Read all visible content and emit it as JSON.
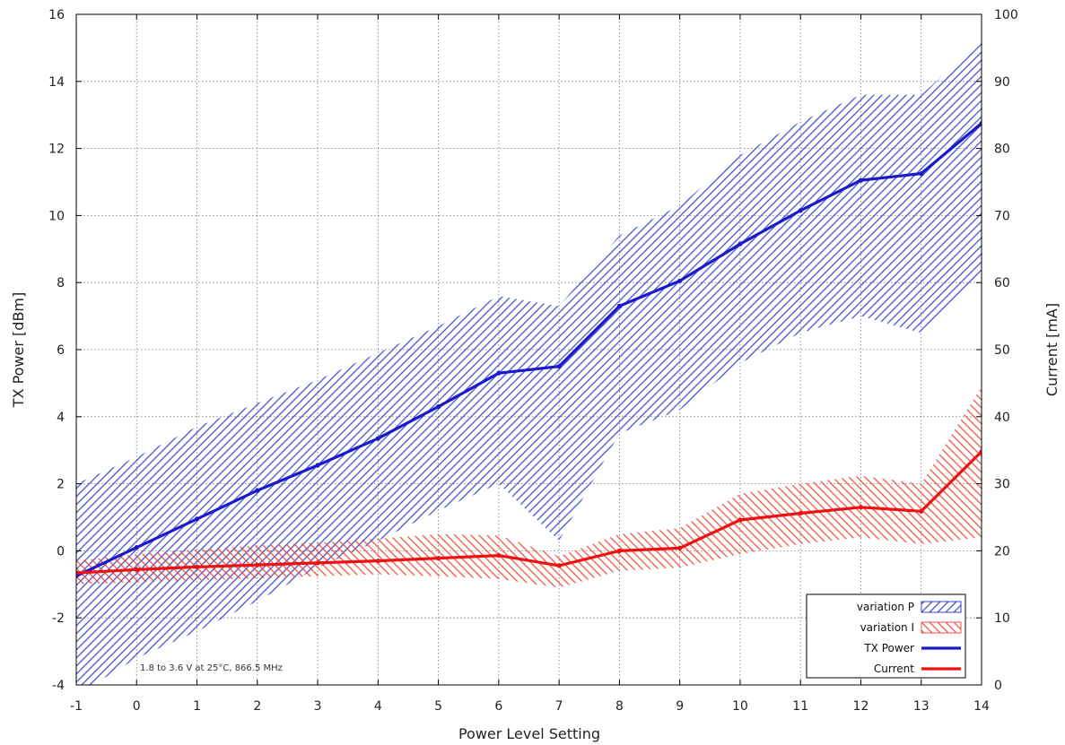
{
  "chart_data": {
    "type": "line",
    "xlabel": "Power Level Setting",
    "ylabel_left": "TX Power [dBm]",
    "ylabel_right": "Current [mA]",
    "x": [
      -1,
      0,
      1,
      2,
      3,
      4,
      5,
      6,
      7,
      8,
      9,
      10,
      11,
      12,
      13,
      14
    ],
    "xlim": [
      -1,
      14
    ],
    "ylim_left": [
      -4,
      16
    ],
    "ylim_right": [
      0,
      100
    ],
    "yticks_left": [
      -4,
      -2,
      0,
      2,
      4,
      6,
      8,
      10,
      12,
      14,
      16
    ],
    "yticks_right": [
      0,
      10,
      20,
      30,
      40,
      50,
      60,
      70,
      80,
      90,
      100
    ],
    "grid": true,
    "legend_position": "bottom-right",
    "annotation": "1.8 to 3.6 V at 25°C, 866.5 MHz",
    "series": [
      {
        "name": "TX Power",
        "axis": "left",
        "color": "#1a1acc",
        "values": [
          -0.75,
          0.1,
          0.95,
          1.8,
          2.55,
          3.35,
          4.3,
          5.3,
          5.5,
          7.3,
          8.05,
          9.15,
          10.15,
          11.05,
          11.25,
          12.75
        ]
      },
      {
        "name": "Current",
        "axis": "right",
        "color": "#ee1111",
        "values": [
          16.7,
          17.2,
          17.6,
          17.9,
          18.2,
          18.5,
          18.9,
          19.3,
          17.8,
          20.0,
          20.4,
          24.6,
          25.6,
          26.5,
          25.9,
          34.8
        ]
      }
    ],
    "bands": [
      {
        "name": "variation P",
        "axis": "left",
        "color": "#3344cc",
        "lower": [
          -4.3,
          -3.2,
          -2.4,
          -1.5,
          -0.5,
          0.3,
          1.2,
          2.0,
          0.3,
          3.5,
          4.2,
          5.6,
          6.5,
          7.0,
          6.5,
          8.3
        ],
        "upper": [
          2.0,
          2.8,
          3.7,
          4.4,
          5.1,
          5.9,
          6.7,
          7.6,
          7.3,
          9.4,
          10.3,
          11.8,
          12.8,
          13.6,
          13.6,
          15.2
        ]
      },
      {
        "name": "variation I",
        "axis": "right",
        "color": "#ee5544",
        "lower": [
          15.0,
          15.3,
          15.6,
          15.9,
          16.2,
          16.5,
          16.2,
          15.8,
          14.5,
          17.0,
          17.5,
          19.5,
          21.0,
          22.0,
          21.0,
          22.0
        ],
        "upper": [
          18.5,
          19.5,
          20.2,
          20.8,
          21.2,
          21.8,
          22.5,
          22.3,
          19.2,
          22.5,
          23.4,
          28.5,
          30.0,
          31.2,
          30.0,
          44.5
        ]
      }
    ]
  }
}
